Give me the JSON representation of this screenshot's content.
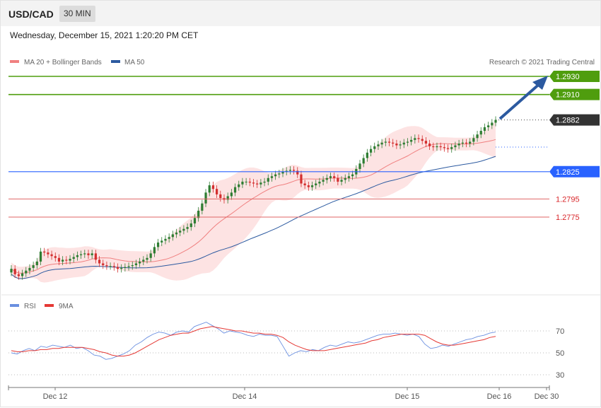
{
  "header": {
    "symbol": "USD/CAD",
    "timeframe": "30 MIN"
  },
  "date_text": "Wednesday, December 15, 2021 1:20:20 PM CET",
  "legend": {
    "ma20": "MA 20 + Bollinger Bands",
    "ma50": "MA 50",
    "rsi": "RSI",
    "rsi_ma": "9MA",
    "credit": "Research © 2021 Trading Central"
  },
  "colors": {
    "resistance": "#4f9d0e",
    "pivot": "#2962ff",
    "support": "#e06666",
    "ma20": "#f08080",
    "ma50": "#2c5aa0",
    "bull": "#2e7d32",
    "bear": "#d32f2f",
    "rsi": "#6a8fe0",
    "rsi_ma": "#e53935",
    "last_price": "#333333"
  },
  "chart_data": [
    {
      "type": "candlestick",
      "title": "USD/CAD 30 MIN",
      "price_range": [
        1.2695,
        1.2945
      ],
      "levels": {
        "resistance": [
          "1.2930",
          "1.2910"
        ],
        "last_price": "1.2882",
        "pivot": "1.2825",
        "support": [
          "1.2795",
          "1.2775"
        ]
      },
      "x_ticks": [
        "Dec 12",
        "Dec 14",
        "Dec 15",
        "Dec 16",
        "Dec 30"
      ],
      "close_series": [
        1.2718,
        1.2712,
        1.271,
        1.2713,
        1.2716,
        1.2719,
        1.2722,
        1.2726,
        1.2737,
        1.2736,
        1.2734,
        1.2732,
        1.273,
        1.2726,
        1.2728,
        1.2727,
        1.2729,
        1.2731,
        1.2733,
        1.2734,
        1.2735,
        1.2733,
        1.2735,
        1.2728,
        1.2724,
        1.2722,
        1.2721,
        1.2721,
        1.272,
        1.2718,
        1.2719,
        1.272,
        1.2721,
        1.2722,
        1.2724,
        1.2726,
        1.2728,
        1.273,
        1.2735,
        1.2742,
        1.2747,
        1.2749,
        1.2751,
        1.2753,
        1.2756,
        1.2758,
        1.276,
        1.2762,
        1.2764,
        1.2768,
        1.2774,
        1.2782,
        1.279,
        1.2802,
        1.281,
        1.2806,
        1.28,
        1.2796,
        1.2794,
        1.2798,
        1.2802,
        1.2808,
        1.2811,
        1.2814,
        1.2814,
        1.2813,
        1.2812,
        1.2811,
        1.2813,
        1.2814,
        1.2818,
        1.282,
        1.2822,
        1.2823,
        1.2825,
        1.2826,
        1.2827,
        1.2826,
        1.2822,
        1.2812,
        1.281,
        1.2808,
        1.281,
        1.2812,
        1.2814,
        1.2816,
        1.2818,
        1.282,
        1.2818,
        1.2814,
        1.2816,
        1.2818,
        1.282,
        1.2822,
        1.2828,
        1.2834,
        1.284,
        1.2846,
        1.285,
        1.2853,
        1.2855,
        1.2857,
        1.2858,
        1.2857,
        1.2856,
        1.2854,
        1.2855,
        1.2857,
        1.2858,
        1.286,
        1.2862,
        1.2861,
        1.2859,
        1.2856,
        1.2853,
        1.2852,
        1.2853,
        1.2852,
        1.2851,
        1.285,
        1.2852,
        1.2854,
        1.2856,
        1.2857,
        1.2856,
        1.2858,
        1.2862,
        1.2866,
        1.287,
        1.2874,
        1.2876,
        1.2879,
        1.2882
      ],
      "ma20_end": 1.2863,
      "ma50_end": 1.2853
    },
    {
      "type": "line",
      "title": "RSI",
      "ylim": [
        20,
        80
      ],
      "y_ticks": [
        30,
        50,
        70
      ],
      "series": [
        {
          "name": "RSI",
          "values": [
            50,
            49,
            52,
            54,
            52,
            56,
            55,
            57,
            56,
            55,
            57,
            54,
            55,
            52,
            48,
            47,
            44,
            45,
            47,
            49,
            52,
            57,
            60,
            64,
            67,
            69,
            68,
            66,
            69,
            70,
            69,
            74,
            76,
            78,
            75,
            72,
            68,
            70,
            69,
            68,
            66,
            65,
            67,
            66,
            66,
            65,
            56,
            47,
            50,
            52,
            51,
            53,
            52,
            55,
            57,
            56,
            58,
            60,
            59,
            60,
            62,
            64,
            66,
            67,
            67,
            68,
            67,
            66,
            67,
            65,
            58,
            54,
            55,
            57,
            56,
            58,
            60,
            62,
            63,
            65,
            66,
            68,
            69
          ]
        },
        {
          "name": "9MA",
          "values": [
            52,
            51,
            51,
            52,
            52,
            53,
            53,
            54,
            54,
            55,
            55,
            55,
            55,
            54,
            53,
            51,
            50,
            48,
            47,
            47,
            48,
            50,
            53,
            56,
            59,
            62,
            64,
            66,
            67,
            68,
            68,
            70,
            72,
            73,
            74,
            73,
            72,
            71,
            70,
            70,
            69,
            68,
            68,
            67,
            67,
            66,
            64,
            60,
            57,
            55,
            53,
            52,
            52,
            52,
            53,
            54,
            55,
            56,
            57,
            58,
            59,
            61,
            62,
            64,
            65,
            66,
            67,
            67,
            67,
            67,
            66,
            63,
            60,
            58,
            57,
            57,
            58,
            59,
            60,
            61,
            62,
            64,
            65
          ]
        }
      ]
    }
  ]
}
